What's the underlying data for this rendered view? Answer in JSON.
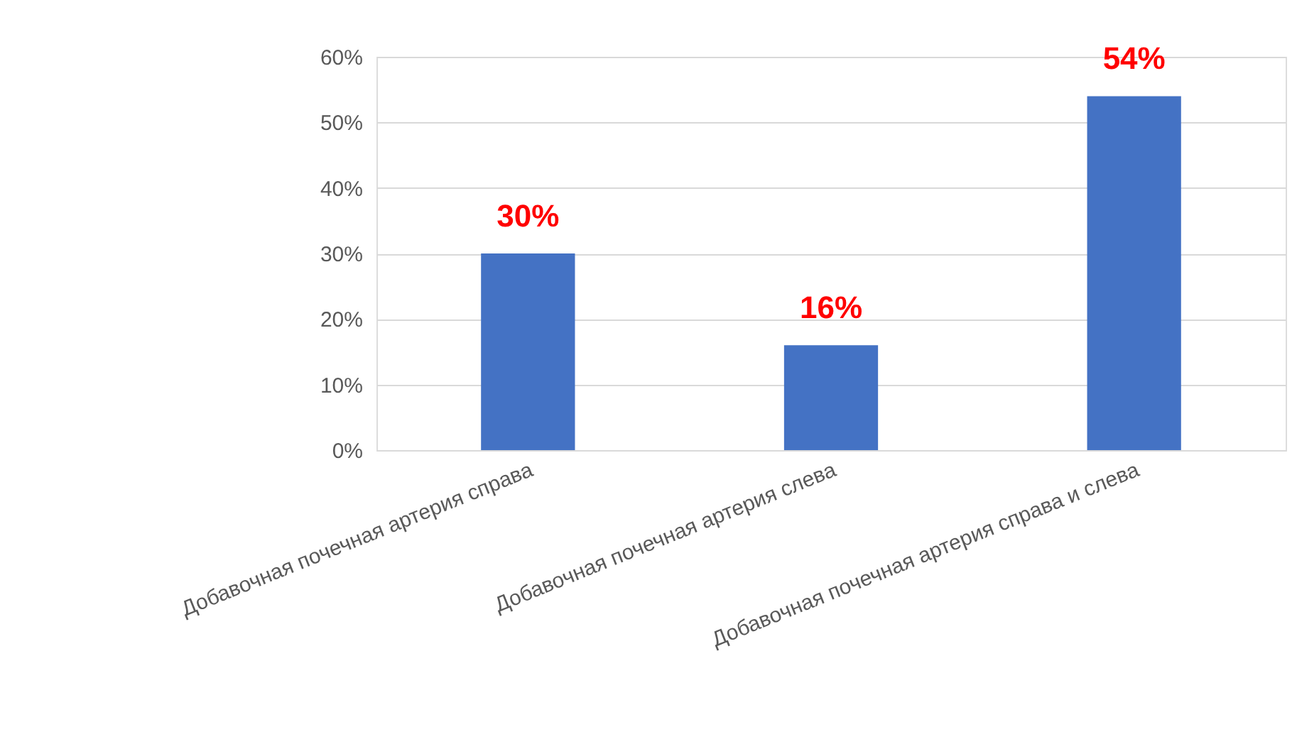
{
  "chart_data": {
    "type": "bar",
    "categories": [
      "Добавочная почечная артерия справа",
      "Добавочная почечная артерия слева",
      "Добавочная почечная артерия справа и слева",
      null
    ],
    "values": [
      30,
      16,
      54,
      null
    ],
    "value_labels": [
      "30%",
      "16%",
      "54%",
      null
    ],
    "color": "#4472c4",
    "ylim": [
      0,
      60
    ],
    "yticks": [
      {
        "value": 0,
        "label": "0%"
      },
      {
        "value": 10,
        "label": "10%"
      },
      {
        "value": 20,
        "label": "20%"
      },
      {
        "value": 30,
        "label": "30%"
      },
      {
        "value": 40,
        "label": "40%"
      },
      {
        "value": 50,
        "label": "50%"
      },
      {
        "value": 60,
        "label": "60%"
      }
    ],
    "grid": "y"
  }
}
